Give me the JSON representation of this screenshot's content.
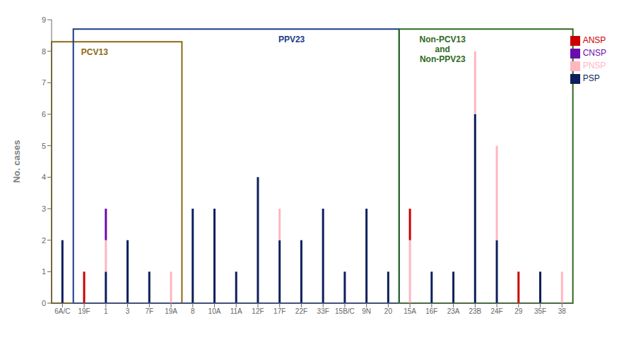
{
  "chart_data": {
    "type": "bar",
    "stacked": true,
    "categories": [
      "6A/C",
      "19F",
      "1",
      "3",
      "7F",
      "19A",
      "8",
      "10A",
      "11A",
      "12F",
      "17F",
      "22F",
      "33F",
      "15B/C",
      "9N",
      "20",
      "15A",
      "16F",
      "23A",
      "23B",
      "24F",
      "29",
      "35F",
      "38"
    ],
    "series": [
      {
        "name": "PSP",
        "color": "#0d1f5c",
        "values": [
          2,
          0,
          1,
          2,
          1,
          0,
          3,
          3,
          1,
          4,
          2,
          2,
          3,
          1,
          3,
          1,
          0,
          1,
          1,
          6,
          2,
          0,
          1,
          0
        ]
      },
      {
        "name": "PNSP",
        "color": "#ffb6c1",
        "values": [
          0,
          0,
          1,
          0,
          0,
          1,
          0,
          0,
          0,
          0,
          1,
          0,
          0,
          0,
          0,
          0,
          2,
          0,
          0,
          2,
          3,
          0,
          0,
          1
        ]
      },
      {
        "name": "ANSP",
        "color": "#cc0000",
        "values": [
          0,
          1,
          0,
          0,
          0,
          0,
          0,
          0,
          0,
          0,
          0,
          0,
          0,
          0,
          0,
          0,
          1,
          0,
          0,
          0,
          0,
          1,
          0,
          0
        ]
      },
      {
        "name": "CNSP",
        "color": "#6a0dad",
        "values": [
          0,
          0,
          1,
          0,
          0,
          0,
          0,
          0,
          0,
          0,
          0,
          0,
          0,
          0,
          0,
          0,
          0,
          0,
          0,
          0,
          0,
          0,
          0,
          0
        ]
      }
    ],
    "ylabel": "No. cases",
    "ylim": [
      0,
      9
    ],
    "yticks": [
      0,
      1,
      2,
      3,
      4,
      5,
      6,
      7,
      8,
      9
    ],
    "grid": false,
    "legend": "upper right",
    "annotations": [
      {
        "text": "PCV13",
        "color": "#8B6914",
        "categories": [
          "6A/C",
          "19F",
          "1",
          "3",
          "7F",
          "19A"
        ]
      },
      {
        "text": "PPV23",
        "color": "#1a3a8a",
        "categories": [
          "19F",
          "1",
          "3",
          "7F",
          "19A",
          "8",
          "10A",
          "11A",
          "12F",
          "17F",
          "22F",
          "33F",
          "15B/C",
          "9N",
          "20"
        ]
      },
      {
        "text": "Non-PCV13\nand\nNon-PPV23",
        "color": "#2d6a1f",
        "categories": [
          "15A",
          "16F",
          "23A",
          "23B",
          "24F",
          "29",
          "35F",
          "38"
        ]
      }
    ]
  }
}
